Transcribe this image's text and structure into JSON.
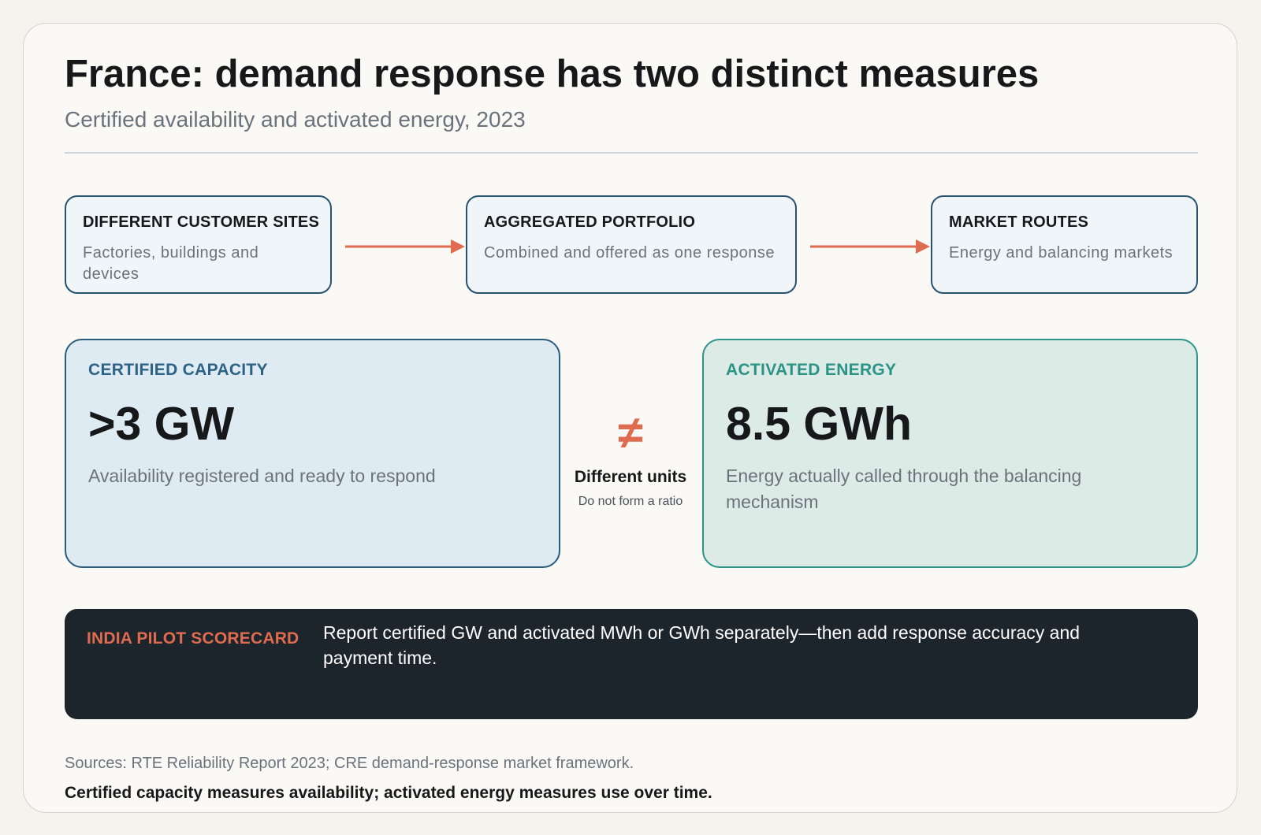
{
  "header": {
    "title": "France: demand response has two distinct measures",
    "subtitle": "Certified availability and activated energy, 2023"
  },
  "flow": [
    {
      "title": "DIFFERENT CUSTOMER SITES",
      "desc": "Factories, buildings and devices"
    },
    {
      "title": "AGGREGATED PORTFOLIO",
      "desc": "Combined and offered as one response"
    },
    {
      "title": "MARKET ROUTES",
      "desc": "Energy and balancing markets"
    }
  ],
  "metrics": {
    "capacity": {
      "label": "CERTIFIED CAPACITY",
      "value": ">3 GW",
      "desc": "Availability registered and ready to respond"
    },
    "energy": {
      "label": "ACTIVATED ENERGY",
      "value": "8.5 GWh",
      "desc": "Energy actually called through the balancing mechanism"
    }
  },
  "comparison": {
    "symbol": "≠",
    "title": "Different units",
    "note": "Do not form a ratio"
  },
  "scorecard": {
    "label": "INDIA PILOT SCORECARD",
    "text": "Report certified GW and activated MWh or GWh separately—then add response accuracy and payment time."
  },
  "footer": {
    "sources": "Sources: RTE Reliability Report 2023; CRE demand-response market framework.",
    "takeaway": "Certified capacity measures availability; activated energy measures use over time."
  },
  "colors": {
    "accent": "#e06c50",
    "capacity_border": "#2b5c7b",
    "energy_border": "#2e9489",
    "dark_panel": "#1c242c"
  },
  "icons": {
    "flow_connector": "right-arrow-icon",
    "comparison": "not-equal-sign"
  }
}
